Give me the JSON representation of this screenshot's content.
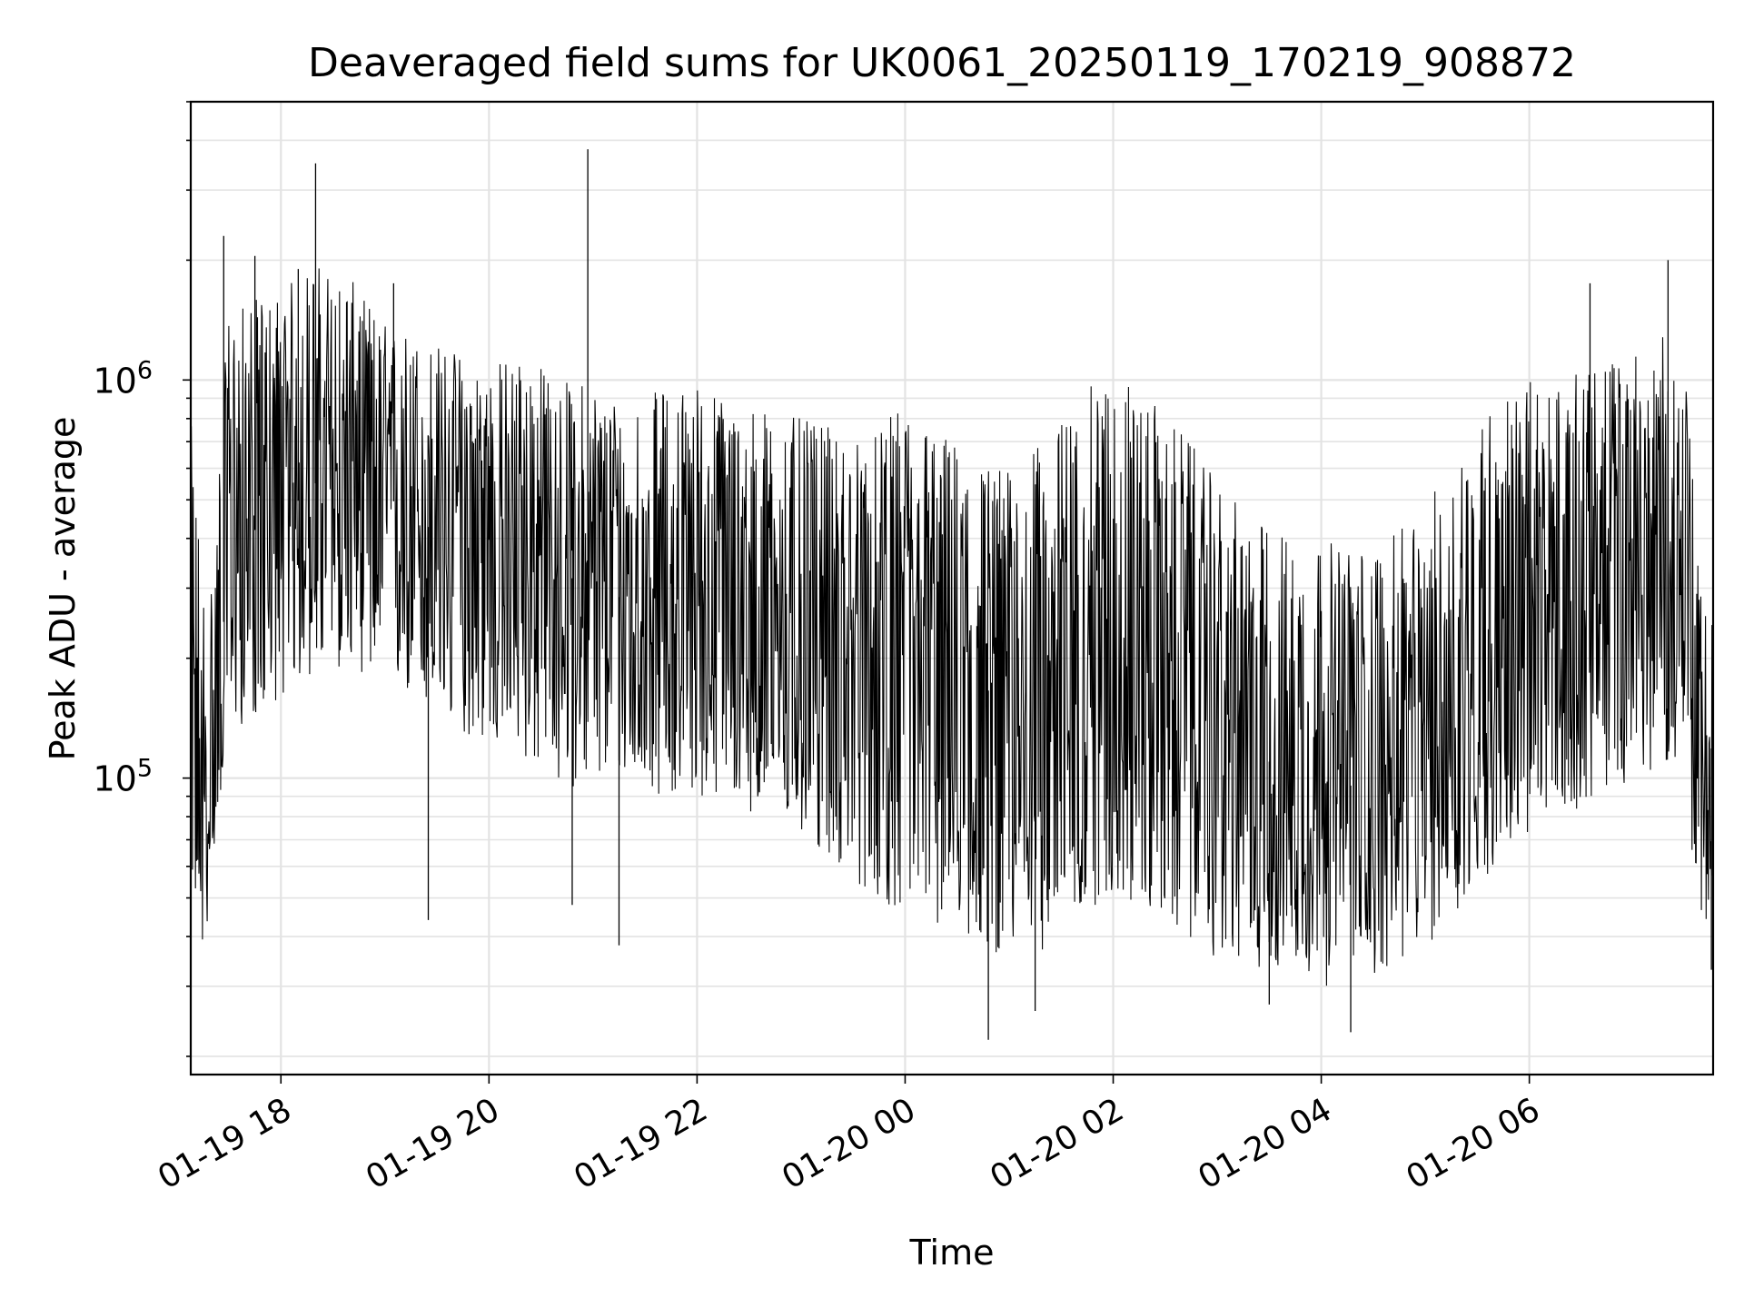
{
  "chart_data": {
    "type": "line",
    "title": "Deaveraged field sums for UK0061_20250119_170219_908872",
    "xlabel": "Time",
    "ylabel": "Peak ADU - average",
    "yscale": "log",
    "grid": true,
    "legend": "none",
    "line_color": "#000000",
    "x_range": [
      "2025-01-19 17:08",
      "2025-01-20 07:46"
    ],
    "ylim": [
      18000,
      5000000
    ],
    "x_ticks": [
      {
        "value": "2025-01-19 18:00",
        "label": "01-19 18"
      },
      {
        "value": "2025-01-19 20:00",
        "label": "01-19 20"
      },
      {
        "value": "2025-01-19 22:00",
        "label": "01-19 22"
      },
      {
        "value": "2025-01-20 00:00",
        "label": "01-20 00"
      },
      {
        "value": "2025-01-20 02:00",
        "label": "01-20 02"
      },
      {
        "value": "2025-01-20 04:00",
        "label": "01-20 04"
      },
      {
        "value": "2025-01-20 06:00",
        "label": "01-20 06"
      }
    ],
    "y_ticks": [
      {
        "value": 100000,
        "base": "10",
        "exp": "5"
      },
      {
        "value": 1000000,
        "base": "10",
        "exp": "6"
      }
    ],
    "series": [
      {
        "x": [
          "2025-01-19 17:08",
          "2025-01-19 17:12",
          "2025-01-19 17:16",
          "2025-01-19 17:20",
          "2025-01-19 17:30",
          "2025-01-19 17:45",
          "2025-01-19 18:00",
          "2025-01-19 18:20",
          "2025-01-19 18:40",
          "2025-01-19 19:00",
          "2025-01-19 19:20",
          "2025-01-19 19:40",
          "2025-01-19 20:00",
          "2025-01-19 20:20",
          "2025-01-19 20:40",
          "2025-01-19 21:00",
          "2025-01-19 21:20",
          "2025-01-19 21:40",
          "2025-01-19 22:00",
          "2025-01-19 22:20",
          "2025-01-19 22:40",
          "2025-01-19 23:00",
          "2025-01-19 23:20",
          "2025-01-19 23:40",
          "2025-01-20 00:00",
          "2025-01-20 00:20",
          "2025-01-20 00:40",
          "2025-01-20 01:00",
          "2025-01-20 01:20",
          "2025-01-20 01:40",
          "2025-01-20 02:00",
          "2025-01-20 02:20",
          "2025-01-20 02:40",
          "2025-01-20 03:00",
          "2025-01-20 03:20",
          "2025-01-20 03:40",
          "2025-01-20 04:00",
          "2025-01-20 04:20",
          "2025-01-20 04:40",
          "2025-01-20 05:00",
          "2025-01-20 05:20",
          "2025-01-20 05:40",
          "2025-01-20 06:00",
          "2025-01-20 06:20",
          "2025-01-20 06:40",
          "2025-01-20 07:00",
          "2025-01-20 07:20",
          "2025-01-20 07:30",
          "2025-01-20 07:38",
          "2025-01-20 07:46"
        ],
        "y": [
          150000,
          90000,
          70000,
          80000,
          400000,
          420000,
          450000,
          550000,
          600000,
          520000,
          430000,
          420000,
          400000,
          380000,
          330000,
          300000,
          280000,
          270000,
          300000,
          260000,
          250000,
          240000,
          220000,
          210000,
          200000,
          190000,
          170000,
          160000,
          165000,
          210000,
          230000,
          200000,
          170000,
          130000,
          110000,
          110000,
          100000,
          95000,
          100000,
          120000,
          160000,
          200000,
          220000,
          250000,
          300000,
          310000,
          330000,
          320000,
          110000,
          120000
        ],
        "envelope_low": [
          60000,
          40000,
          35000,
          60000,
          130000,
          140000,
          160000,
          180000,
          190000,
          170000,
          150000,
          130000,
          120000,
          110000,
          95000,
          95000,
          100000,
          90000,
          90000,
          85000,
          80000,
          70000,
          60000,
          50000,
          45000,
          42000,
          38000,
          35000,
          37000,
          45000,
          50000,
          45000,
          40000,
          35000,
          33000,
          33000,
          30000,
          30000,
          33000,
          37000,
          45000,
          60000,
          70000,
          80000,
          90000,
          100000,
          110000,
          100000,
          40000,
          45000
        ],
        "envelope_high": [
          800000,
          500000,
          300000,
          350000,
          1500000,
          1600000,
          1700000,
          2000000,
          1800000,
          1400000,
          1300000,
          1200000,
          1100000,
          1200000,
          1000000,
          1000000,
          900000,
          950000,
          1000000,
          900000,
          850000,
          800000,
          750000,
          700000,
          900000,
          750000,
          650000,
          600000,
          700000,
          900000,
          1100000,
          900000,
          750000,
          550000,
          450000,
          420000,
          400000,
          380000,
          400000,
          480000,
          700000,
          900000,
          1000000,
          1000000,
          1100000,
          1200000,
          1300000,
          1200000,
          300000,
          250000
        ],
        "spikes": [
          {
            "x": "2025-01-19 17:27",
            "y": 2300000
          },
          {
            "x": "2025-01-19 17:45",
            "y": 2050000
          },
          {
            "x": "2025-01-19 18:10",
            "y": 1900000
          },
          {
            "x": "2025-01-19 18:20",
            "y": 3500000
          },
          {
            "x": "2025-01-19 19:05",
            "y": 1750000
          },
          {
            "x": "2025-01-19 19:25",
            "y": 44000
          },
          {
            "x": "2025-01-19 20:48",
            "y": 48000
          },
          {
            "x": "2025-01-19 20:57",
            "y": 3800000
          },
          {
            "x": "2025-01-19 21:15",
            "y": 38000
          },
          {
            "x": "2025-01-20 00:48",
            "y": 22000
          },
          {
            "x": "2025-01-20 01:15",
            "y": 26000
          },
          {
            "x": "2025-01-20 03:30",
            "y": 27000
          },
          {
            "x": "2025-01-20 04:17",
            "y": 23000
          },
          {
            "x": "2025-01-20 06:35",
            "y": 1750000
          },
          {
            "x": "2025-01-20 07:20",
            "y": 2000000
          },
          {
            "x": "2025-01-20 07:45",
            "y": 33000
          }
        ]
      }
    ]
  }
}
